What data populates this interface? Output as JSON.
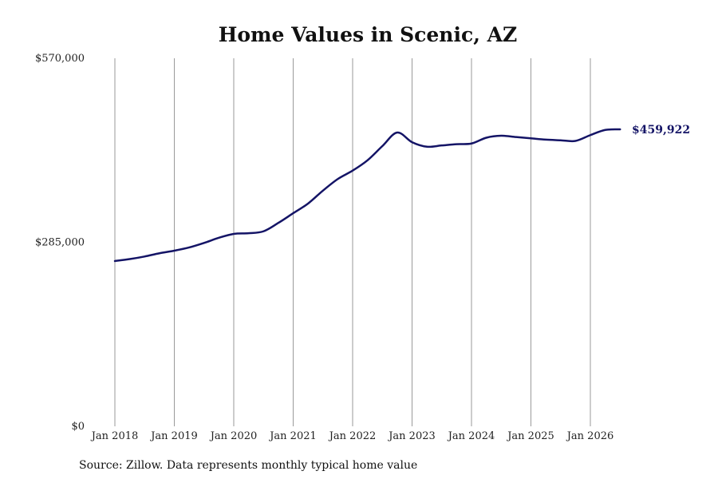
{
  "chart_data": {
    "type": "line",
    "title": "Home Values in Scenic, AZ",
    "xlabel": "",
    "ylabel": "",
    "x_ticks": [
      "Jan 2018",
      "Jan 2019",
      "Jan 2020",
      "Jan 2021",
      "Jan 2022",
      "Jan 2023",
      "Jan 2024",
      "Jan 2025",
      "Jan 2026"
    ],
    "y_ticks": [
      {
        "value": 0,
        "label": "$0"
      },
      {
        "value": 285000,
        "label": "$285,000"
      },
      {
        "value": 570000,
        "label": "$570,000"
      }
    ],
    "ylim": [
      0,
      570000
    ],
    "xlim": [
      "2018-01",
      "2026-07"
    ],
    "grid": "vertical lines at each January",
    "series": [
      {
        "name": "",
        "color": "#141466",
        "points": [
          {
            "x": "2018-01",
            "y": 256000
          },
          {
            "x": "2018-04",
            "y": 259000
          },
          {
            "x": "2018-07",
            "y": 263000
          },
          {
            "x": "2018-10",
            "y": 268000
          },
          {
            "x": "2019-01",
            "y": 272000
          },
          {
            "x": "2019-04",
            "y": 277000
          },
          {
            "x": "2019-07",
            "y": 284000
          },
          {
            "x": "2019-10",
            "y": 292000
          },
          {
            "x": "2020-01",
            "y": 298000
          },
          {
            "x": "2020-04",
            "y": 299000
          },
          {
            "x": "2020-07",
            "y": 302000
          },
          {
            "x": "2020-10",
            "y": 315000
          },
          {
            "x": "2021-01",
            "y": 330000
          },
          {
            "x": "2021-04",
            "y": 345000
          },
          {
            "x": "2021-07",
            "y": 365000
          },
          {
            "x": "2021-10",
            "y": 383000
          },
          {
            "x": "2022-01",
            "y": 396000
          },
          {
            "x": "2022-04",
            "y": 412000
          },
          {
            "x": "2022-07",
            "y": 434000
          },
          {
            "x": "2022-10",
            "y": 455000
          },
          {
            "x": "2023-01",
            "y": 440000
          },
          {
            "x": "2023-04",
            "y": 433000
          },
          {
            "x": "2023-07",
            "y": 435000
          },
          {
            "x": "2023-10",
            "y": 437000
          },
          {
            "x": "2024-01",
            "y": 438000
          },
          {
            "x": "2024-04",
            "y": 447000
          },
          {
            "x": "2024-07",
            "y": 450000
          },
          {
            "x": "2024-10",
            "y": 448000
          },
          {
            "x": "2025-01",
            "y": 446000
          },
          {
            "x": "2025-04",
            "y": 444000
          },
          {
            "x": "2025-07",
            "y": 443000
          },
          {
            "x": "2025-10",
            "y": 442000
          },
          {
            "x": "2026-01",
            "y": 451000
          },
          {
            "x": "2026-04",
            "y": 459000
          },
          {
            "x": "2026-07",
            "y": 459922
          }
        ]
      }
    ],
    "end_label": "$459,922",
    "source_note": "Source: Zillow. Data represents monthly typical home value"
  }
}
